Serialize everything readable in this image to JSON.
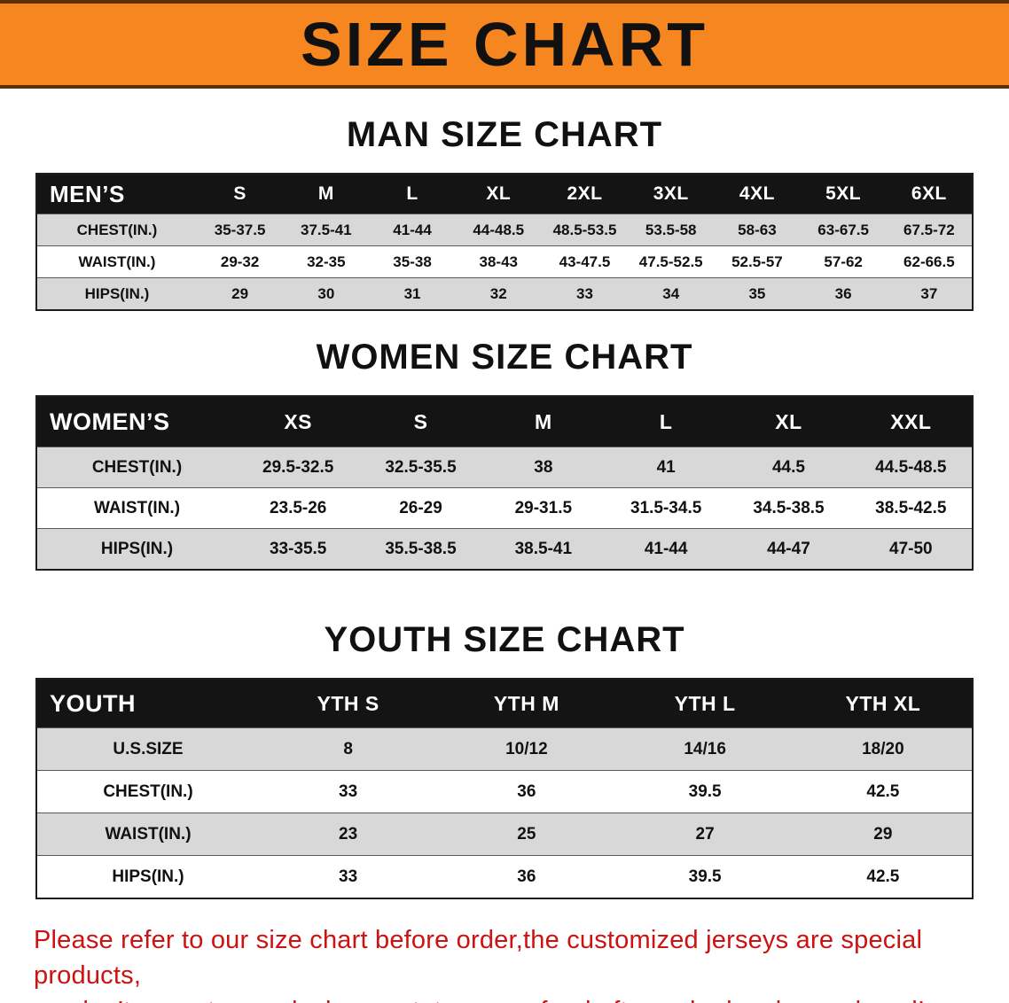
{
  "banner": {
    "title": "SIZE CHART"
  },
  "colors": {
    "banner_bg": "#F6861F",
    "header_bg": "#141414",
    "row_alt": "#d8d8d8",
    "notice_red": "#cc1212"
  },
  "sections": [
    {
      "heading": "MAN SIZE CHART",
      "table": {
        "header": [
          "MEN’S",
          "S",
          "M",
          "L",
          "XL",
          "2XL",
          "3XL",
          "4XL",
          "5XL",
          "6XL"
        ],
        "rows": [
          [
            "CHEST(IN.)",
            "35-37.5",
            "37.5-41",
            "41-44",
            "44-48.5",
            "48.5-53.5",
            "53.5-58",
            "58-63",
            "63-67.5",
            "67.5-72"
          ],
          [
            "WAIST(IN.)",
            "29-32",
            "32-35",
            "35-38",
            "38-43",
            "43-47.5",
            "47.5-52.5",
            "52.5-57",
            "57-62",
            "62-66.5"
          ],
          [
            "HIPS(IN.)",
            "29",
            "30",
            "31",
            "32",
            "33",
            "34",
            "35",
            "36",
            "37"
          ]
        ]
      }
    },
    {
      "heading": "WOMEN SIZE CHART",
      "table": {
        "header": [
          "WOMEN’S",
          "XS",
          "S",
          "M",
          "L",
          "XL",
          "XXL"
        ],
        "rows": [
          [
            "CHEST(IN.)",
            "29.5-32.5",
            "32.5-35.5",
            "38",
            "41",
            "44.5",
            "44.5-48.5"
          ],
          [
            "WAIST(IN.)",
            "23.5-26",
            "26-29",
            "29-31.5",
            "31.5-34.5",
            "34.5-38.5",
            "38.5-42.5"
          ],
          [
            "HIPS(IN.)",
            "33-35.5",
            "35.5-38.5",
            "38.5-41",
            "41-44",
            "44-47",
            "47-50"
          ]
        ]
      }
    },
    {
      "heading": "YOUTH SIZE CHART",
      "table": {
        "header": [
          "YOUTH",
          "YTH S",
          "YTH M",
          "YTH L",
          "YTH XL"
        ],
        "rows": [
          [
            "U.S.SIZE",
            "8",
            "10/12",
            "14/16",
            "18/20"
          ],
          [
            "CHEST(IN.)",
            "33",
            "36",
            "39.5",
            "42.5"
          ],
          [
            "WAIST(IN.)",
            "23",
            "25",
            "27",
            "29"
          ],
          [
            "HIPS(IN.)",
            "33",
            "36",
            "39.5",
            "42.5"
          ]
        ]
      }
    }
  ],
  "footer": {
    "line1": "Please refer to our size chart before order,the customized jerseys are special products,",
    "line2": "we don’t accept cancel, change, teturn or refund after order has been placed!"
  }
}
